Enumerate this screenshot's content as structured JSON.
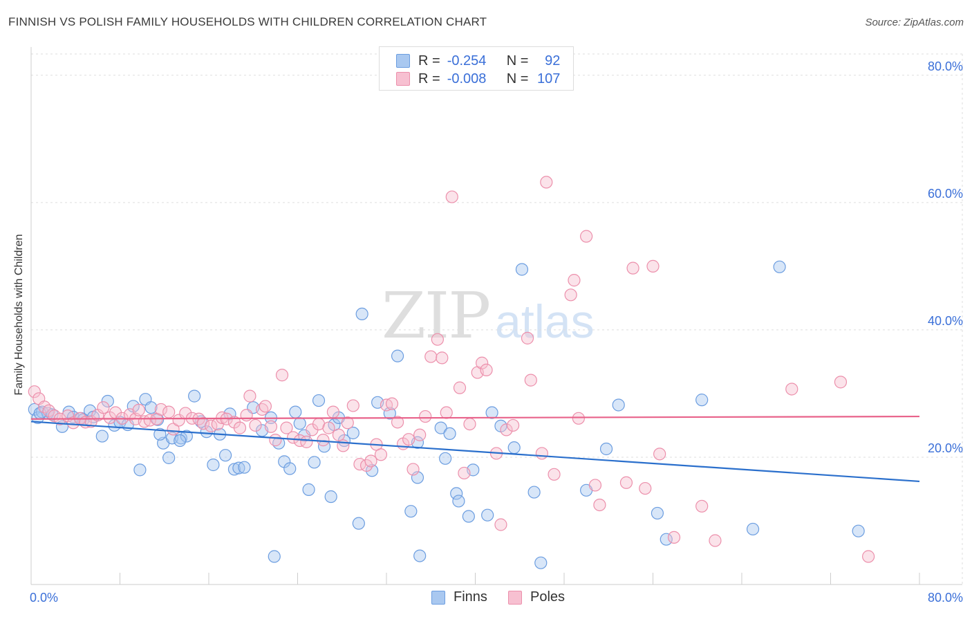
{
  "title": "FINNISH VS POLISH FAMILY HOUSEHOLDS WITH CHILDREN CORRELATION CHART",
  "source": "Source: ZipAtlas.com",
  "watermark": {
    "zip": "ZIP",
    "atlas": "atlas"
  },
  "legend": {
    "finns": {
      "r_label": "R =",
      "r_value": "-0.254",
      "n_label": "N =",
      "n_value": "92"
    },
    "poles": {
      "r_label": "R =",
      "r_value": "-0.008",
      "n_label": "N =",
      "n_value": "107"
    }
  },
  "bottom_legend": {
    "finns": "Finns",
    "poles": "Poles"
  },
  "colors": {
    "finns_fill": "#a9c8f0",
    "finns_stroke": "#6b9de0",
    "finns_line": "#2a6fcc",
    "poles_fill": "#f7c0d1",
    "poles_stroke": "#ec8fab",
    "poles_line": "#e8628a",
    "axis_label": "#3a6fd8",
    "grid": "#dddddd"
  },
  "chart_data": {
    "type": "scatter",
    "title": "FINNISH VS POLISH FAMILY HOUSEHOLDS WITH CHILDREN CORRELATION CHART",
    "xlabel": "",
    "ylabel": "Family Households with Children",
    "xlim": [
      0,
      80
    ],
    "ylim": [
      0,
      84
    ],
    "x_tick_labels": [
      "0.0%",
      "80.0%"
    ],
    "y_ticks": [
      20,
      40,
      60,
      80
    ],
    "y_tick_labels": [
      "20.0%",
      "40.0%",
      "60.0%",
      "80.0%"
    ],
    "grid": true,
    "legend_position": "top-center",
    "series": [
      {
        "name": "Finns",
        "trend": {
          "x": [
            0,
            80
          ],
          "y": [
            25.6,
            16.2
          ]
        },
        "points": [
          [
            0.3,
            27.5
          ],
          [
            0.6,
            26.2
          ],
          [
            1.0,
            27.1
          ],
          [
            1.5,
            26.9
          ],
          [
            1.9,
            26.7
          ],
          [
            2.8,
            24.8
          ],
          [
            3.4,
            27.1
          ],
          [
            3.8,
            26.3
          ],
          [
            4.5,
            26.1
          ],
          [
            5.3,
            27.3
          ],
          [
            5.6,
            26.3
          ],
          [
            6.4,
            23.3
          ],
          [
            6.9,
            28.8
          ],
          [
            7.5,
            25.0
          ],
          [
            8.0,
            25.5
          ],
          [
            8.7,
            25.1
          ],
          [
            9.2,
            28.0
          ],
          [
            9.8,
            18.0
          ],
          [
            10.3,
            29.1
          ],
          [
            10.8,
            27.8
          ],
          [
            11.4,
            25.9
          ],
          [
            11.9,
            22.2
          ],
          [
            11.6,
            23.6
          ],
          [
            12.4,
            19.9
          ],
          [
            12.7,
            23.0
          ],
          [
            13.5,
            23.0
          ],
          [
            14.0,
            23.3
          ],
          [
            14.7,
            29.6
          ],
          [
            15.3,
            25.6
          ],
          [
            15.8,
            24.0
          ],
          [
            16.4,
            18.8
          ],
          [
            17.0,
            23.6
          ],
          [
            17.5,
            20.3
          ],
          [
            17.9,
            26.8
          ],
          [
            18.3,
            18.1
          ],
          [
            18.7,
            18.3
          ],
          [
            19.2,
            18.4
          ],
          [
            20.0,
            27.8
          ],
          [
            20.8,
            24.2
          ],
          [
            21.6,
            26.2
          ],
          [
            21.9,
            4.4
          ],
          [
            22.3,
            22.2
          ],
          [
            22.8,
            19.3
          ],
          [
            23.3,
            18.2
          ],
          [
            23.8,
            27.1
          ],
          [
            24.2,
            25.3
          ],
          [
            24.6,
            23.4
          ],
          [
            25.0,
            14.9
          ],
          [
            25.5,
            19.2
          ],
          [
            25.9,
            28.9
          ],
          [
            26.4,
            21.7
          ],
          [
            27.0,
            13.8
          ],
          [
            27.3,
            25.1
          ],
          [
            27.7,
            26.2
          ],
          [
            28.2,
            22.6
          ],
          [
            29.0,
            23.8
          ],
          [
            29.5,
            9.6
          ],
          [
            29.8,
            42.5
          ],
          [
            30.7,
            17.9
          ],
          [
            31.2,
            28.6
          ],
          [
            32.3,
            26.9
          ],
          [
            33.0,
            35.9
          ],
          [
            34.2,
            11.5
          ],
          [
            34.8,
            22.3
          ],
          [
            34.8,
            16.8
          ],
          [
            35.0,
            4.5
          ],
          [
            36.9,
            24.6
          ],
          [
            37.3,
            19.8
          ],
          [
            37.7,
            23.7
          ],
          [
            38.3,
            14.3
          ],
          [
            38.5,
            13.1
          ],
          [
            39.4,
            10.7
          ],
          [
            39.8,
            18.0
          ],
          [
            41.1,
            10.9
          ],
          [
            41.5,
            27.0
          ],
          [
            42.3,
            24.9
          ],
          [
            43.5,
            21.5
          ],
          [
            44.2,
            49.5
          ],
          [
            45.3,
            14.5
          ],
          [
            45.9,
            3.4
          ],
          [
            50.0,
            14.8
          ],
          [
            51.8,
            21.3
          ],
          [
            52.9,
            28.2
          ],
          [
            56.4,
            11.2
          ],
          [
            57.2,
            7.1
          ],
          [
            60.4,
            29.0
          ],
          [
            65.0,
            8.7
          ],
          [
            67.4,
            49.9
          ],
          [
            74.5,
            8.4
          ],
          [
            0.8,
            26.9
          ],
          [
            4.7,
            25.9
          ],
          [
            13.4,
            22.6
          ]
        ]
      },
      {
        "name": "Poles",
        "trend": {
          "x": [
            0,
            80
          ],
          "y": [
            26.0,
            26.4
          ]
        },
        "points": [
          [
            0.3,
            30.3
          ],
          [
            0.7,
            29.2
          ],
          [
            1.2,
            27.9
          ],
          [
            1.6,
            27.3
          ],
          [
            2.1,
            26.5
          ],
          [
            2.6,
            26.0
          ],
          [
            3.3,
            26.5
          ],
          [
            3.8,
            25.4
          ],
          [
            4.4,
            26.1
          ],
          [
            4.9,
            25.5
          ],
          [
            5.4,
            25.6
          ],
          [
            6.0,
            26.6
          ],
          [
            6.5,
            27.8
          ],
          [
            7.1,
            26.2
          ],
          [
            7.6,
            27.0
          ],
          [
            8.2,
            26.1
          ],
          [
            8.9,
            26.7
          ],
          [
            9.4,
            26.0
          ],
          [
            9.7,
            27.4
          ],
          [
            10.2,
            25.6
          ],
          [
            10.7,
            25.8
          ],
          [
            11.3,
            26.0
          ],
          [
            11.7,
            27.5
          ],
          [
            12.4,
            27.1
          ],
          [
            12.8,
            24.4
          ],
          [
            13.3,
            25.8
          ],
          [
            13.9,
            26.9
          ],
          [
            14.5,
            26.1
          ],
          [
            15.1,
            26.0
          ],
          [
            15.5,
            25.3
          ],
          [
            16.2,
            24.9
          ],
          [
            16.8,
            25.2
          ],
          [
            17.2,
            26.2
          ],
          [
            17.6,
            26.0
          ],
          [
            18.3,
            25.5
          ],
          [
            18.8,
            24.6
          ],
          [
            19.4,
            26.6
          ],
          [
            19.7,
            29.6
          ],
          [
            20.2,
            25.0
          ],
          [
            20.8,
            27.5
          ],
          [
            21.1,
            28.0
          ],
          [
            21.6,
            24.8
          ],
          [
            22.0,
            22.7
          ],
          [
            22.6,
            32.9
          ],
          [
            23.0,
            24.6
          ],
          [
            23.6,
            23.1
          ],
          [
            24.2,
            22.6
          ],
          [
            24.8,
            22.4
          ],
          [
            25.3,
            24.3
          ],
          [
            25.9,
            25.2
          ],
          [
            26.3,
            22.7
          ],
          [
            26.8,
            24.6
          ],
          [
            27.2,
            27.1
          ],
          [
            27.7,
            23.5
          ],
          [
            28.1,
            21.8
          ],
          [
            28.5,
            25.4
          ],
          [
            29.0,
            28.1
          ],
          [
            29.6,
            18.9
          ],
          [
            30.2,
            18.7
          ],
          [
            30.6,
            19.4
          ],
          [
            31.1,
            22.0
          ],
          [
            31.5,
            20.4
          ],
          [
            32.0,
            28.2
          ],
          [
            32.5,
            28.4
          ],
          [
            33.0,
            25.5
          ],
          [
            33.5,
            22.1
          ],
          [
            34.0,
            22.8
          ],
          [
            34.4,
            18.1
          ],
          [
            35.0,
            23.5
          ],
          [
            35.5,
            26.4
          ],
          [
            36.0,
            35.8
          ],
          [
            36.6,
            38.5
          ],
          [
            37.0,
            35.6
          ],
          [
            37.4,
            27.0
          ],
          [
            37.9,
            60.9
          ],
          [
            38.6,
            30.9
          ],
          [
            39.0,
            17.5
          ],
          [
            39.5,
            25.2
          ],
          [
            40.2,
            33.3
          ],
          [
            40.6,
            34.8
          ],
          [
            41.0,
            33.7
          ],
          [
            41.9,
            20.6
          ],
          [
            42.3,
            9.4
          ],
          [
            42.8,
            24.3
          ],
          [
            43.4,
            25.0
          ],
          [
            44.7,
            38.7
          ],
          [
            45.0,
            32.1
          ],
          [
            46.0,
            20.6
          ],
          [
            46.4,
            63.2
          ],
          [
            47.1,
            17.3
          ],
          [
            48.6,
            45.5
          ],
          [
            48.9,
            47.8
          ],
          [
            49.3,
            26.1
          ],
          [
            50.0,
            54.7
          ],
          [
            50.8,
            15.6
          ],
          [
            51.2,
            12.5
          ],
          [
            53.6,
            16.0
          ],
          [
            54.2,
            49.7
          ],
          [
            55.3,
            15.1
          ],
          [
            56.0,
            50.0
          ],
          [
            56.6,
            20.5
          ],
          [
            57.9,
            7.4
          ],
          [
            60.4,
            12.3
          ],
          [
            61.6,
            6.9
          ],
          [
            68.5,
            30.7
          ],
          [
            72.9,
            31.8
          ],
          [
            75.4,
            4.4
          ]
        ]
      }
    ]
  }
}
